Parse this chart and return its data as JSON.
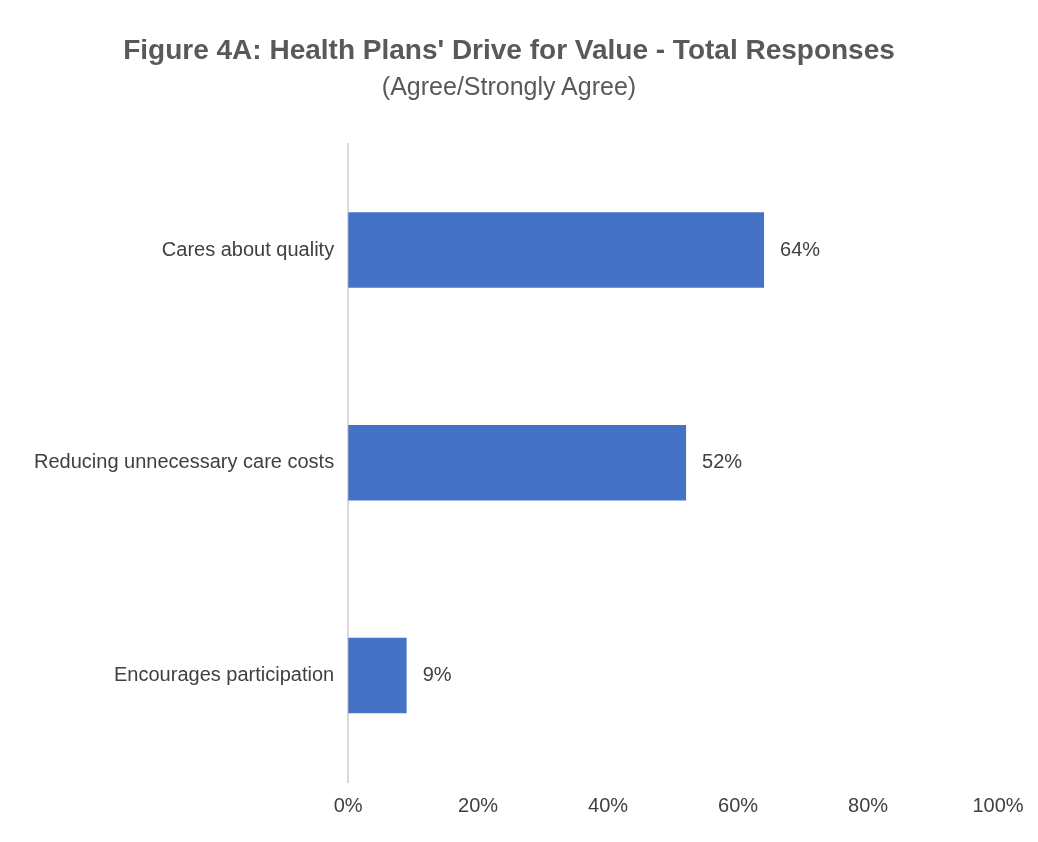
{
  "chart_data": {
    "type": "bar",
    "orientation": "horizontal",
    "title": "Figure 4A: Health Plans' Drive for Value - Total Responses",
    "subtitle": "(Agree/Strongly Agree)",
    "categories": [
      "Cares about quality",
      "Reducing unnecessary care costs",
      "Encourages participation"
    ],
    "values": [
      64,
      52,
      9
    ],
    "color": "#4472c4",
    "value_labels": [
      "64%",
      "52%",
      "9%"
    ],
    "xlim": [
      0,
      100
    ],
    "xticks": [
      {
        "value": 0,
        "label": "0%"
      },
      {
        "value": 20,
        "label": "20%"
      },
      {
        "value": 40,
        "label": "40%"
      },
      {
        "value": 60,
        "label": "60%"
      },
      {
        "value": 80,
        "label": "80%"
      },
      {
        "value": 100,
        "label": "100%"
      }
    ],
    "grid": false,
    "legend": false
  }
}
